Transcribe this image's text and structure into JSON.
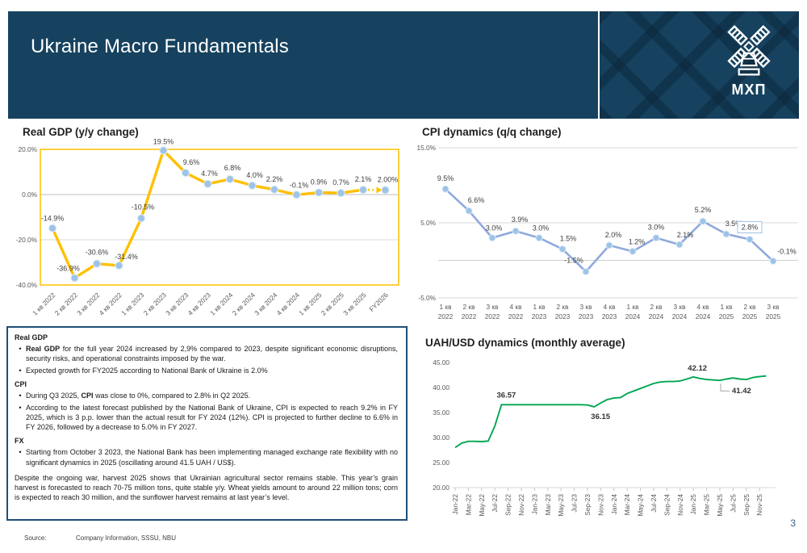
{
  "header": {
    "title": "Ukraine Macro Fundamentals",
    "logo_text": "МХП",
    "background_color": "#16425F"
  },
  "chart_data": [
    {
      "id": "gdp",
      "type": "line",
      "title": "Real GDP (y/y change)",
      "categories": [
        "1 кв 2022",
        "2 кв 2022",
        "3 кв 2022",
        "4 кв 2022",
        "1 кв 2023",
        "2 кв 2023",
        "3 кв 2023",
        "4 кв 2023",
        "1 кв 2024",
        "2 кв 2024",
        "3 кв 2024",
        "4 кв 2024",
        "1 кв 2025",
        "2 кв 2025",
        "3 кв 2025",
        "FY2026"
      ],
      "values": [
        -14.9,
        -36.9,
        -30.6,
        -31.4,
        -10.5,
        19.5,
        9.6,
        4.7,
        6.8,
        4.0,
        2.2,
        -0.1,
        0.9,
        0.7,
        2.1,
        2.0
      ],
      "point_labels": [
        "-14.9%",
        "-36.9%",
        "-30.6%",
        "-31.4%",
        "-10.5%",
        "19.5%",
        "9.6%",
        "4.7%",
        "6.8%",
        "4.0%",
        "2.2%",
        "-0.1%",
        "0.9%",
        "0.7%",
        "2.1%",
        "2.00%"
      ],
      "yticks": [
        {
          "v": 20,
          "label": "20.0%"
        },
        {
          "v": 0,
          "label": "0.0%"
        },
        {
          "v": -20,
          "label": "-20.0%"
        },
        {
          "v": -40,
          "label": "-40.0%"
        }
      ],
      "ylim": [
        -40,
        20
      ],
      "grid_values": [
        0,
        -20
      ],
      "line_color": "#FFC000",
      "marker_color": "#9DC3E6",
      "border_color": "#FFC000",
      "forecast_dashed_last_segment": true
    },
    {
      "id": "cpi",
      "type": "line",
      "title": "CPI dynamics (q/q change)",
      "categories": [
        "1 кв 2022",
        "2 кв 2022",
        "3 кв 2022",
        "4 кв 2022",
        "1 кв 2023",
        "2 кв 2023",
        "3 кв 2023",
        "4 кв 2023",
        "1 кв 2024",
        "2 кв 2024",
        "3 кв 2024",
        "4 кв 2024",
        "1 кв 2025",
        "2 кв 2025",
        "3 кв 2025"
      ],
      "values": [
        9.5,
        6.6,
        3.0,
        3.9,
        3.0,
        1.5,
        -1.5,
        2.0,
        1.2,
        3.0,
        2.1,
        5.2,
        3.5,
        2.8,
        -0.1
      ],
      "point_labels": [
        "9.5%",
        "6.6%",
        "3.0%",
        "3.9%",
        "3.0%",
        "1.5%",
        "-1.5%",
        "2.0%",
        "1.2%",
        "3.0%",
        "2.1%",
        "5.2%",
        "3.5%",
        "2.8%",
        "-0.1%"
      ],
      "boxed_label_index": 13,
      "yticks": [
        {
          "v": 15,
          "label": "15.0%"
        },
        {
          "v": 5,
          "label": "5.0%"
        },
        {
          "v": -5,
          "label": "-5.0%"
        }
      ],
      "ylim": [
        -5,
        15
      ],
      "grid_values": [
        15,
        5,
        0,
        -5
      ],
      "line_color": "#8FAADC",
      "marker_color": "#9DC3E6"
    },
    {
      "id": "uah",
      "type": "line",
      "title": "UAH/USD dynamics (monthly average)",
      "months_range": "Jan-22 to Dec-25",
      "x_labels": [
        "Jan-22",
        "Mar-22",
        "May-22",
        "Jul-22",
        "Sep-22",
        "Nov-22",
        "Jan-23",
        "Mar-23",
        "May-23",
        "Jul-23",
        "Sep-23",
        "Nov-23",
        "Jan-24",
        "Mar-24",
        "May-24",
        "Jul-24",
        "Sep-24",
        "Nov-24",
        "Jan-25",
        "Mar-25",
        "May-25",
        "Jul-25",
        "Sep-25",
        "Nov-25"
      ],
      "label_every_n_months": 2,
      "values": [
        28.0,
        28.9,
        29.25,
        29.25,
        29.2,
        29.3,
        32.3,
        36.57,
        36.57,
        36.57,
        36.57,
        36.57,
        36.57,
        36.57,
        36.57,
        36.57,
        36.57,
        36.57,
        36.57,
        36.57,
        36.5,
        36.15,
        36.9,
        37.6,
        37.9,
        38.0,
        38.8,
        39.3,
        39.8,
        40.3,
        40.8,
        41.1,
        41.2,
        41.2,
        41.3,
        41.7,
        42.12,
        41.8,
        41.6,
        41.5,
        41.42,
        41.7,
        41.9,
        41.7,
        41.6,
        42.0,
        42.2,
        42.3
      ],
      "yticks": [
        {
          "v": 45,
          "label": "45.00"
        },
        {
          "v": 40,
          "label": "40.00"
        },
        {
          "v": 35,
          "label": "35.00"
        },
        {
          "v": 30,
          "label": "30.00"
        },
        {
          "v": 25,
          "label": "25.00"
        },
        {
          "v": 20,
          "label": "20.00"
        }
      ],
      "ylim": [
        20,
        45
      ],
      "line_color": "#00A651",
      "annotations": [
        {
          "text": "36.57",
          "point_index": 7,
          "position": "above"
        },
        {
          "text": "36.15",
          "point_index": 21,
          "position": "below"
        },
        {
          "text": "42.12",
          "point_index": 36,
          "position": "above"
        },
        {
          "text": "41.42",
          "point_index": 40,
          "position": "right",
          "leader": true
        }
      ]
    }
  ],
  "notes": {
    "sections": [
      {
        "heading": "Real GDP",
        "bullets": [
          [
            {
              "text": "Real GDP",
              "bold": true
            },
            {
              "text": " for the full year 2024 increased by 2,9% compared to 2023, despite significant economic disruptions, security risks, and operational constraints imposed by the war.",
              "bold": false
            }
          ],
          [
            {
              "text": "Expected growth for FY2025 according to National Bank of Ukraine is 2.0%",
              "bold": false
            }
          ]
        ]
      },
      {
        "heading": "CPI",
        "bullets": [
          [
            {
              "text": "During Q3 2025, ",
              "bold": false
            },
            {
              "text": "CPI",
              "bold": true
            },
            {
              "text": " was close to 0%, compared to 2.8% in Q2 2025.",
              "bold": false
            }
          ],
          [
            {
              "text": "According to the latest forecast published by the National Bank of Ukraine, CPI is expected to reach 9.2% in FY 2025, which is 3 p.p. lower than the actual result for FY 2024 (12%). CPI is projected to further decline to 6.6% in FY 2026, followed by a decrease to 5.0% in FY 2027.",
              "bold": false
            }
          ]
        ]
      },
      {
        "heading": "FX",
        "bullets": [
          [
            {
              "text": "Starting from October 3 2023, the National Bank has been implementing managed exchange rate flexibility with no significant dynamics in 2025 (oscillating around 41.5 UAH / US$).",
              "bold": false
            }
          ]
        ]
      }
    ],
    "footer_paragraph": "Despite the ongoing war, harvest 2025 shows that Ukrainian agricultural sector remains stable. This year’s grain harvest is forecasted to reach 70-75 million tons, quite stable y/y. Wheat yields amount to around 22 million tons; corn is expected to reach 30 million, and the sunflower harvest remains at last year’s level."
  },
  "footer": {
    "source_label": "Source:",
    "source_value": "Company Information, SSSU, NBU",
    "page_number": "3"
  }
}
